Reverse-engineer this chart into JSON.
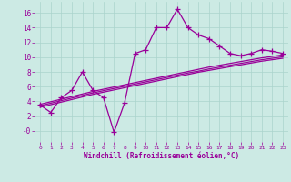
{
  "xlabel": "Windchill (Refroidissement éolien,°C)",
  "background_color": "#cceae4",
  "grid_color": "#aad4cc",
  "line_color": "#990099",
  "x": [
    0,
    1,
    2,
    3,
    4,
    5,
    6,
    7,
    8,
    9,
    10,
    11,
    12,
    13,
    14,
    15,
    16,
    17,
    18,
    19,
    20,
    21,
    22,
    23
  ],
  "y_main": [
    3.5,
    2.5,
    4.5,
    5.5,
    8.0,
    5.5,
    4.5,
    -0.2,
    3.8,
    10.5,
    11.0,
    14.0,
    14.0,
    16.5,
    14.0,
    13.0,
    12.5,
    11.5,
    10.5,
    10.2,
    10.5,
    11.0,
    10.8,
    10.5
  ],
  "y_smooth1": [
    3.6,
    3.95,
    4.3,
    4.65,
    5.0,
    5.35,
    5.65,
    5.95,
    6.25,
    6.55,
    6.85,
    7.15,
    7.45,
    7.75,
    8.05,
    8.35,
    8.65,
    8.9,
    9.15,
    9.4,
    9.65,
    9.9,
    10.1,
    10.3
  ],
  "y_smooth2": [
    3.4,
    3.75,
    4.1,
    4.45,
    4.8,
    5.15,
    5.45,
    5.75,
    6.05,
    6.35,
    6.65,
    6.95,
    7.25,
    7.55,
    7.85,
    8.1,
    8.4,
    8.65,
    8.9,
    9.15,
    9.4,
    9.65,
    9.85,
    10.05
  ],
  "y_smooth3": [
    3.2,
    3.55,
    3.9,
    4.25,
    4.6,
    4.95,
    5.25,
    5.55,
    5.85,
    6.15,
    6.45,
    6.75,
    7.05,
    7.35,
    7.65,
    7.95,
    8.2,
    8.45,
    8.7,
    8.95,
    9.2,
    9.45,
    9.65,
    9.85
  ],
  "ylim": [
    -1.5,
    17.5
  ],
  "xlim": [
    -0.5,
    23.5
  ],
  "yticks": [
    0,
    2,
    4,
    6,
    8,
    10,
    12,
    14,
    16
  ],
  "ytick_labels": [
    "-0",
    "2",
    "4",
    "6",
    "8",
    "10",
    "12",
    "14",
    "16"
  ],
  "xticks": [
    0,
    1,
    2,
    3,
    4,
    5,
    6,
    7,
    8,
    9,
    10,
    11,
    12,
    13,
    14,
    15,
    16,
    17,
    18,
    19,
    20,
    21,
    22,
    23
  ],
  "marker": "+",
  "markersize": 4,
  "linewidth": 0.9
}
